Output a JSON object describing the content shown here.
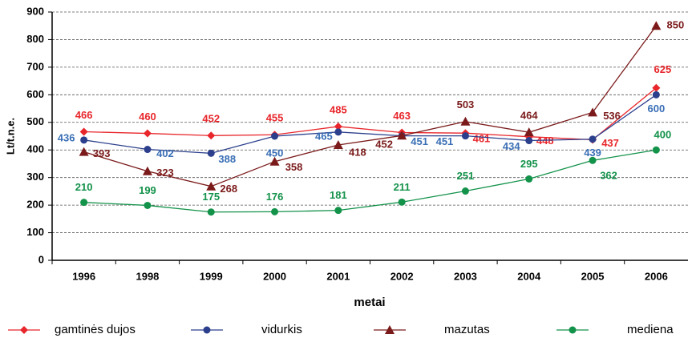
{
  "chart_data": {
    "type": "line",
    "categories": [
      "1996",
      "1998",
      "1999",
      "2000",
      "2001",
      "2002",
      "2003",
      "2004",
      "2005",
      "2006"
    ],
    "series": [
      {
        "name": "gamtinės dujos",
        "color": "#e8262b",
        "marker": "diamond",
        "values": [
          466,
          460,
          452,
          455,
          485,
          463,
          461,
          448,
          437,
          625
        ]
      },
      {
        "name": "vidurkis",
        "color": "#2b3f8c",
        "label_color": "#3a6fb5",
        "marker": "circle",
        "values": [
          436,
          402,
          388,
          450,
          465,
          451,
          451,
          434,
          439,
          600
        ]
      },
      {
        "name": "mazutas",
        "color": "#7b1a1a",
        "marker": "triangle",
        "values": [
          393,
          323,
          268,
          358,
          418,
          452,
          503,
          464,
          536,
          850
        ]
      },
      {
        "name": "mediena",
        "color": "#13924a",
        "marker": "circle",
        "values": [
          210,
          199,
          175,
          176,
          181,
          211,
          251,
          295,
          362,
          400
        ]
      }
    ],
    "ylabel": "Lt/t.n.e.",
    "xlabel": "metai",
    "ylim": [
      0,
      900
    ],
    "yticks": [
      0,
      100,
      200,
      300,
      400,
      500,
      600,
      700,
      800,
      900
    ],
    "grid": true
  }
}
